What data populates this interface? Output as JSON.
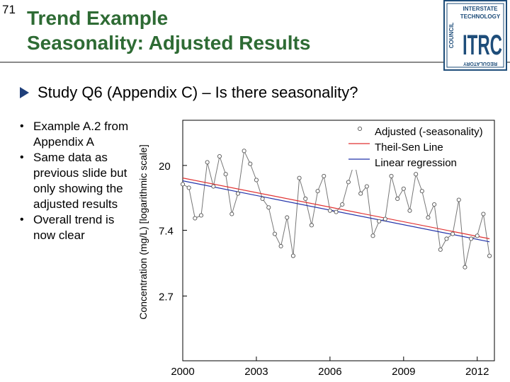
{
  "slide_number": "71",
  "title_line1": "Trend Example",
  "title_line2": "Seasonality: Adjusted Results",
  "question": "Study Q6 (Appendix C) – Is there seasonality?",
  "bullets": [
    "Example A.2 from Appendix A",
    "Same data as previous slide but only showing the adjusted results",
    "Overall trend is now clear"
  ],
  "logo": {
    "top_text": "INTERSTATE",
    "mid_text": "TECHNOLOGY",
    "side_text": "COUNCIL",
    "bottom_text": "REGULATORY",
    "letters": "ITRC"
  },
  "colors": {
    "title": "#2e6b34",
    "theil_sen": "#e03030",
    "linear": "#2233aa",
    "data": "#777777",
    "logo": "#1e4d7a"
  },
  "chart_data": {
    "type": "line",
    "ylabel": "Concentration (mg/L) [logarithmic scale]",
    "y_scale": "log",
    "y_ticks": [
      20,
      7.4,
      2.7
    ],
    "x_ticks": [
      2000,
      2003,
      2006,
      2009,
      2012
    ],
    "xlim": [
      2000,
      2012.7
    ],
    "ylim": [
      1.0,
      40
    ],
    "legend_position": "top-right",
    "series": [
      {
        "name": "Adjusted (-seasonality)",
        "style": "points-line",
        "x": [
          2000.0,
          2000.25,
          2000.5,
          2000.75,
          2001.0,
          2001.25,
          2001.5,
          2001.75,
          2002.0,
          2002.25,
          2002.5,
          2002.75,
          2003.0,
          2003.25,
          2003.5,
          2003.75,
          2004.0,
          2004.25,
          2004.5,
          2004.75,
          2005.0,
          2005.25,
          2005.5,
          2005.75,
          2006.0,
          2006.25,
          2006.5,
          2006.75,
          2007.0,
          2007.25,
          2007.5,
          2007.75,
          2008.0,
          2008.25,
          2008.5,
          2008.75,
          2009.0,
          2009.25,
          2009.5,
          2009.75,
          2010.0,
          2010.25,
          2010.5,
          2010.75,
          2011.0,
          2011.25,
          2011.5,
          2011.75,
          2012.0,
          2012.25,
          2012.5
        ],
        "y": [
          15.0,
          14.2,
          8.9,
          9.3,
          21.0,
          14.5,
          23.0,
          17.5,
          9.5,
          13.0,
          25.0,
          20.5,
          16.0,
          12.0,
          10.5,
          7.0,
          5.8,
          9.0,
          5.0,
          16.5,
          12.0,
          8.0,
          13.5,
          17.0,
          10.0,
          9.8,
          11.0,
          15.5,
          21.0,
          13.0,
          14.5,
          6.8,
          8.5,
          8.8,
          17.0,
          12.0,
          14.0,
          10.0,
          17.5,
          13.5,
          9.0,
          11.0,
          5.5,
          6.5,
          7.0,
          11.8,
          4.2,
          6.5,
          6.8,
          9.5,
          5.0
        ]
      },
      {
        "name": "Theil-Sen Line",
        "style": "line",
        "x": [
          2000.0,
          2012.5
        ],
        "y": [
          16.5,
          6.5
        ]
      },
      {
        "name": "Linear regression",
        "style": "line",
        "x": [
          2000.0,
          2012.5
        ],
        "y": [
          15.8,
          6.2
        ]
      }
    ]
  }
}
